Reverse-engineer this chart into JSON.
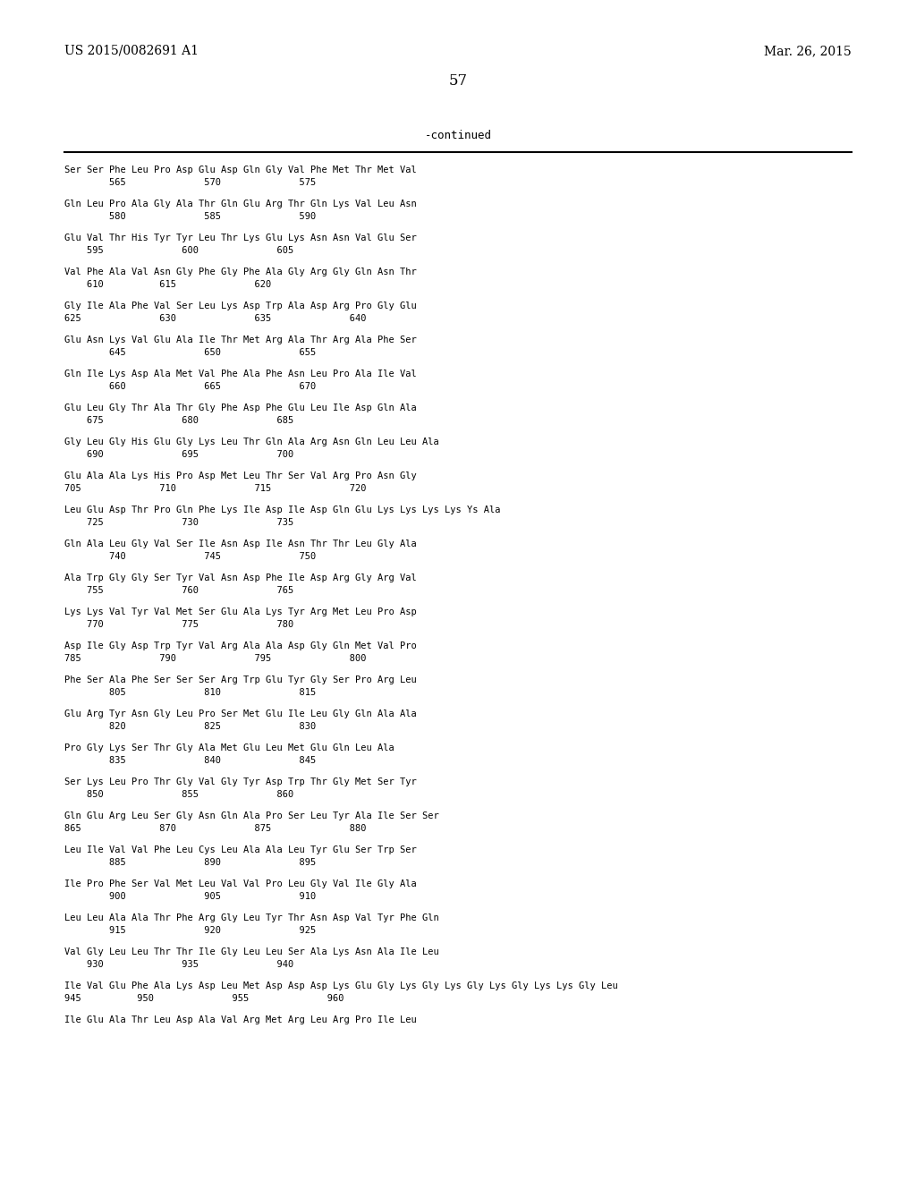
{
  "background_color": "#ffffff",
  "header_left": "US 2015/0082691 A1",
  "header_right": "Mar. 26, 2015",
  "page_number": "57",
  "continued_text": "-continued",
  "sequence_blocks": [
    {
      "seq_line": "Ser Ser Phe Leu Pro Asp Glu Asp Gln Gly Val Phe Met Thr Met Val",
      "num_line": "        565              570              575"
    },
    {
      "seq_line": "Gln Leu Pro Ala Gly Ala Thr Gln Glu Arg Thr Gln Lys Val Leu Asn",
      "num_line": "        580              585              590"
    },
    {
      "seq_line": "Glu Val Thr His Tyr Tyr Leu Thr Lys Glu Lys Asn Asn Val Glu Ser",
      "num_line": "    595              600              605"
    },
    {
      "seq_line": "Val Phe Ala Val Asn Gly Phe Gly Phe Ala Gly Arg Gly Gln Asn Thr",
      "num_line": "    610          615              620"
    },
    {
      "seq_line": "Gly Ile Ala Phe Val Ser Leu Lys Asp Trp Ala Asp Arg Pro Gly Glu",
      "num_line": "625              630              635              640"
    },
    {
      "seq_line": "Glu Asn Lys Val Glu Ala Ile Thr Met Arg Ala Thr Arg Ala Phe Ser",
      "num_line": "        645              650              655"
    },
    {
      "seq_line": "Gln Ile Lys Asp Ala Met Val Phe Ala Phe Asn Leu Pro Ala Ile Val",
      "num_line": "        660              665              670"
    },
    {
      "seq_line": "Glu Leu Gly Thr Ala Thr Gly Phe Asp Phe Glu Leu Ile Asp Gln Ala",
      "num_line": "    675              680              685"
    },
    {
      "seq_line": "Gly Leu Gly His Glu Gly Lys Leu Thr Gln Ala Arg Asn Gln Leu Leu Ala",
      "num_line": "    690              695              700"
    },
    {
      "seq_line": "Glu Ala Ala Lys His Pro Asp Met Leu Thr Ser Val Arg Pro Asn Gly",
      "num_line": "705              710              715              720"
    },
    {
      "seq_line": "Leu Glu Asp Thr Pro Gln Phe Lys Ile Asp Ile Asp Gln Glu Lys Lys Lys Lys Ys Ala",
      "num_line": "    725              730              735"
    },
    {
      "seq_line": "Gln Ala Leu Gly Val Ser Ile Asn Asp Ile Asn Thr Thr Leu Gly Ala",
      "num_line": "        740              745              750"
    },
    {
      "seq_line": "Ala Trp Gly Gly Ser Tyr Val Asn Asp Phe Ile Asp Arg Gly Arg Val",
      "num_line": "    755              760              765"
    },
    {
      "seq_line": "Lys Lys Val Tyr Val Met Ser Glu Ala Lys Tyr Arg Met Leu Pro Asp",
      "num_line": "    770              775              780"
    },
    {
      "seq_line": "Asp Ile Gly Asp Trp Tyr Val Arg Ala Ala Asp Gly Gln Met Val Pro",
      "num_line": "785              790              795              800"
    },
    {
      "seq_line": "Phe Ser Ala Phe Ser Ser Ser Arg Trp Glu Tyr Gly Ser Pro Arg Leu",
      "num_line": "        805              810              815"
    },
    {
      "seq_line": "Glu Arg Tyr Asn Gly Leu Pro Ser Met Glu Ile Leu Gly Gln Ala Ala",
      "num_line": "        820              825              830"
    },
    {
      "seq_line": "Pro Gly Lys Ser Thr Gly Ala Met Glu Leu Met Glu Gln Leu Ala",
      "num_line": "        835              840              845"
    },
    {
      "seq_line": "Ser Lys Leu Pro Thr Gly Val Gly Tyr Asp Trp Thr Gly Met Ser Tyr",
      "num_line": "    850              855              860"
    },
    {
      "seq_line": "Gln Glu Arg Leu Ser Gly Asn Gln Ala Pro Ser Leu Tyr Ala Ile Ser Ser",
      "num_line": "865              870              875              880"
    },
    {
      "seq_line": "Leu Ile Val Val Phe Leu Cys Leu Ala Ala Leu Tyr Glu Ser Trp Ser",
      "num_line": "        885              890              895"
    },
    {
      "seq_line": "Ile Pro Phe Ser Val Met Leu Val Val Pro Leu Gly Val Ile Gly Ala",
      "num_line": "        900              905              910"
    },
    {
      "seq_line": "Leu Leu Ala Ala Thr Phe Arg Gly Leu Tyr Thr Asn Asp Val Tyr Phe Gln",
      "num_line": "        915              920              925"
    },
    {
      "seq_line": "Val Gly Leu Leu Thr Thr Ile Gly Leu Leu Ser Ala Lys Asn Ala Ile Leu",
      "num_line": "    930              935              940"
    },
    {
      "seq_line": "Ile Val Glu Phe Ala Lys Asp Leu Met Asp Asp Asp Lys Glu Gly Lys Gly Lys Gly Lys Gly Lys Lys Gly Leu",
      "num_line": "945          950              955              960"
    },
    {
      "seq_line": "Ile Glu Ala Thr Leu Asp Ala Val Arg Met Arg Leu Arg Pro Ile Leu",
      "num_line": ""
    }
  ]
}
